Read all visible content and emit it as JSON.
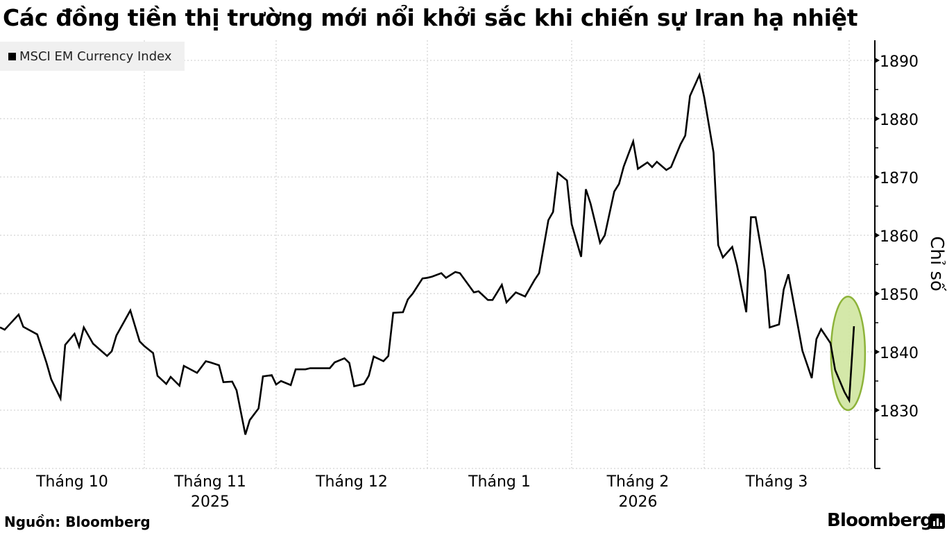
{
  "title": "Các đồng tiền thị trường mới nổi khởi sắc khi chiến sự Iran hạ nhiệt",
  "source": "Nguồn: Bloomberg",
  "brand": "Bloomberg",
  "colors": {
    "line": "#000000",
    "highlight_fill": "#cfe5a0",
    "highlight_stroke": "#8db33a",
    "grid": "#c8c8c8",
    "legend_bg": "#f0f0f0"
  },
  "chart_data": {
    "type": "line",
    "title": "Các đồng tiền thị trường mới nổi khởi sắc khi chiến sự Iran hạ nhiệt",
    "ylabel": "Chỉ số",
    "ylim": [
      1820,
      1893
    ],
    "yticks": [
      1830,
      1840,
      1850,
      1860,
      1870,
      1880,
      1890
    ],
    "y_axis_side": "right",
    "grid": true,
    "legend_placement": "top-left",
    "xticks": [
      {
        "label": "Tháng 10",
        "year": ""
      },
      {
        "label": "Tháng 11",
        "year": "2025"
      },
      {
        "label": "Tháng 12",
        "year": ""
      },
      {
        "label": "Tháng 1",
        "year": ""
      },
      {
        "label": "Tháng 2",
        "year": "2026"
      },
      {
        "label": "Tháng 3",
        "year": ""
      }
    ],
    "highlight": {
      "shape": "ellipse",
      "from": "2026-03-29",
      "to": "2026-04-02",
      "ymin": 1830,
      "ymax": 1849.5
    },
    "series": [
      {
        "name": "MSCI EM Currency Index",
        "x": [
          "2025-10-01",
          "2025-10-02",
          "2025-10-05",
          "2025-10-06",
          "2025-10-09",
          "2025-10-11",
          "2025-10-12",
          "2025-10-14",
          "2025-10-15",
          "2025-10-17",
          "2025-10-18",
          "2025-10-19",
          "2025-10-21",
          "2025-10-24",
          "2025-10-25",
          "2025-10-26",
          "2025-10-29",
          "2025-10-31",
          "2025-11-01",
          "2025-11-03",
          "2025-11-04",
          "2025-11-06",
          "2025-11-07",
          "2025-11-09",
          "2025-11-10",
          "2025-11-12",
          "2025-11-13",
          "2025-11-15",
          "2025-11-16",
          "2025-11-18",
          "2025-11-19",
          "2025-11-21",
          "2025-11-22",
          "2025-11-24",
          "2025-11-25",
          "2025-11-27",
          "2025-11-28",
          "2025-11-30",
          "2025-12-01",
          "2025-12-02",
          "2025-12-04",
          "2025-12-05",
          "2025-12-07",
          "2025-12-08",
          "2025-12-12",
          "2025-12-13",
          "2025-12-15",
          "2025-12-16",
          "2025-12-17",
          "2025-12-19",
          "2025-12-20",
          "2025-12-21",
          "2025-12-23",
          "2025-12-24",
          "2025-12-25",
          "2025-12-27",
          "2025-12-28",
          "2025-12-29",
          "2025-12-31",
          "2026-01-01",
          "2026-01-02",
          "2026-01-04",
          "2026-01-05",
          "2026-01-07",
          "2026-01-08",
          "2026-01-11",
          "2026-01-12",
          "2026-01-14",
          "2026-01-15",
          "2026-01-17",
          "2026-01-18",
          "2026-01-20",
          "2026-01-22",
          "2026-01-24",
          "2026-01-25",
          "2026-01-27",
          "2026-01-28",
          "2026-01-29",
          "2026-01-31",
          "2026-02-01",
          "2026-02-03",
          "2026-02-04",
          "2026-02-05",
          "2026-02-07",
          "2026-02-08",
          "2026-02-10",
          "2026-02-11",
          "2026-02-12",
          "2026-02-14",
          "2026-02-15",
          "2026-02-17",
          "2026-02-18",
          "2026-02-19",
          "2026-02-21",
          "2026-02-22",
          "2026-02-24",
          "2026-02-25",
          "2026-02-26",
          "2026-02-28",
          "2026-03-01",
          "2026-03-03",
          "2026-03-04",
          "2026-03-05",
          "2026-03-07",
          "2026-03-08",
          "2026-03-10",
          "2026-03-11",
          "2026-03-12",
          "2026-03-14",
          "2026-03-15",
          "2026-03-17",
          "2026-03-18",
          "2026-03-19",
          "2026-03-21",
          "2026-03-22",
          "2026-03-24",
          "2026-03-25",
          "2026-03-26",
          "2026-03-28",
          "2026-03-29",
          "2026-03-31",
          "2026-04-01",
          "2026-04-02"
        ],
        "values": [
          1844.2,
          1843.8,
          1846.4,
          1844.3,
          1843.0,
          1838.1,
          1835.3,
          1832.0,
          1841.2,
          1843.1,
          1840.9,
          1844.2,
          1841.4,
          1839.3,
          1840.1,
          1842.8,
          1847.1,
          1841.8,
          1841.0,
          1839.8,
          1835.9,
          1834.5,
          1835.7,
          1834.2,
          1837.6,
          1836.8,
          1836.4,
          1838.4,
          1838.2,
          1837.7,
          1834.8,
          1834.9,
          1833.4,
          1825.8,
          1828.3,
          1830.3,
          1835.8,
          1836.0,
          1834.4,
          1835.0,
          1834.3,
          1837.0,
          1837.0,
          1837.2,
          1837.2,
          1838.2,
          1838.9,
          1838.1,
          1834.1,
          1834.5,
          1835.9,
          1839.2,
          1838.4,
          1839.3,
          1846.7,
          1846.8,
          1849.0,
          1850.0,
          1852.6,
          1852.7,
          1852.9,
          1853.5,
          1852.7,
          1853.7,
          1853.5,
          1850.2,
          1850.4,
          1848.9,
          1848.9,
          1851.5,
          1848.5,
          1850.2,
          1849.5,
          1852.3,
          1853.5,
          1862.6,
          1864.0,
          1870.7,
          1869.4,
          1861.9,
          1856.3,
          1867.9,
          1865.4,
          1858.7,
          1860.0,
          1867.5,
          1868.8,
          1871.8,
          1876.1,
          1871.4,
          1872.5,
          1871.7,
          1872.6,
          1871.2,
          1871.7,
          1875.6,
          1877.1,
          1883.9,
          1887.5,
          1883.7,
          1874.2,
          1858.3,
          1856.2,
          1858.0,
          1854.9,
          1846.8,
          1863.1,
          1863.1,
          1853.9,
          1844.2,
          1844.7,
          1850.7,
          1853.3,
          1844.6,
          1840.2,
          1835.5,
          1842.2,
          1843.9,
          1841.5,
          1836.9,
          1833.1,
          1831.7,
          1844.4
        ]
      }
    ]
  }
}
